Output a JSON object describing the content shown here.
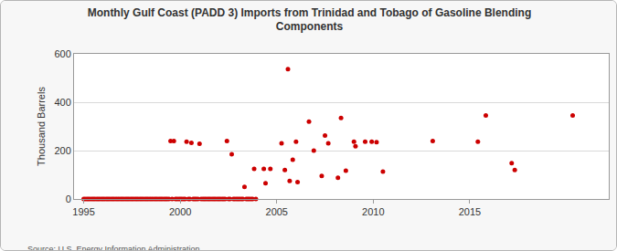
{
  "chart_data": {
    "type": "scatter",
    "title": "Monthly Gulf Coast (PADD 3) Imports from Trinidad and Tobago of Gasoline Blending Components",
    "y_label": "Thousand Barrels",
    "source": "Source: U.S. Energy Information Administration",
    "color": "#cc0000",
    "marker": "circle",
    "grid": true,
    "xlim": [
      1994.5,
      2022.2
    ],
    "xticks": [
      1995,
      2000,
      2005,
      2010,
      2015
    ],
    "ylim": [
      0,
      600
    ],
    "yticks": [
      0,
      200,
      400,
      600
    ],
    "x": [
      1995.0,
      1995.08,
      1995.17,
      1995.25,
      1995.33,
      1995.42,
      1995.5,
      1995.58,
      1995.67,
      1995.75,
      1995.83,
      1995.92,
      1996.0,
      1996.08,
      1996.17,
      1996.25,
      1996.33,
      1996.42,
      1996.5,
      1996.58,
      1996.67,
      1996.75,
      1996.83,
      1996.92,
      1997.0,
      1997.08,
      1997.17,
      1997.25,
      1997.33,
      1997.42,
      1997.5,
      1997.58,
      1997.67,
      1997.75,
      1997.83,
      1997.92,
      1998.0,
      1998.08,
      1998.17,
      1998.25,
      1998.33,
      1998.42,
      1998.5,
      1998.58,
      1998.67,
      1998.75,
      1998.83,
      1998.92,
      1999.0,
      1999.08,
      1999.17,
      1999.25,
      1999.33,
      1999.42,
      1999.5,
      1999.58,
      1999.67,
      1999.75,
      1999.83,
      1999.92,
      2000.0,
      2000.08,
      2000.17,
      2000.25,
      2000.33,
      2000.42,
      2000.5,
      2000.58,
      2000.67,
      2000.75,
      2000.83,
      2000.92,
      2001.0,
      2001.08,
      2001.17,
      2001.25,
      2001.33,
      2001.42,
      2001.5,
      2001.58,
      2001.67,
      2001.75,
      2001.83,
      2001.92,
      2002.0,
      2002.08,
      2002.17,
      2002.25,
      2002.33,
      2002.42,
      2002.5,
      2002.58,
      2002.67,
      2002.75,
      2002.83,
      2002.92,
      2003.0,
      2003.08,
      2003.17,
      2003.25,
      2003.33,
      2003.42,
      2003.5,
      2003.58,
      2003.67,
      2003.75,
      2003.83,
      2003.92,
      2004.33,
      2004.42,
      2004.67,
      2005.25,
      2005.42,
      2005.58,
      2005.67,
      2005.83,
      2006.0,
      2006.08,
      2006.67,
      2006.92,
      2007.33,
      2007.5,
      2007.67,
      2008.17,
      2008.33,
      2008.58,
      2009.0,
      2009.08,
      2009.58,
      2009.92,
      2010.17,
      2010.5,
      2013.08,
      2015.42,
      2015.83,
      2017.17,
      2017.33,
      2020.33
    ],
    "values": [
      0,
      0,
      0,
      0,
      0,
      0,
      0,
      0,
      0,
      0,
      0,
      0,
      0,
      0,
      0,
      0,
      0,
      0,
      0,
      0,
      0,
      0,
      0,
      0,
      0,
      0,
      0,
      0,
      0,
      0,
      0,
      0,
      0,
      0,
      0,
      0,
      0,
      0,
      0,
      0,
      0,
      0,
      0,
      0,
      0,
      0,
      0,
      0,
      0,
      0,
      0,
      0,
      0,
      0,
      240,
      0,
      240,
      0,
      0,
      0,
      0,
      0,
      0,
      0,
      237,
      0,
      0,
      232,
      0,
      0,
      0,
      0,
      228,
      0,
      0,
      0,
      0,
      0,
      0,
      0,
      0,
      0,
      0,
      0,
      0,
      0,
      0,
      0,
      0,
      240,
      0,
      0,
      185,
      0,
      0,
      0,
      0,
      0,
      0,
      0,
      50,
      0,
      0,
      0,
      0,
      0,
      125,
      0,
      125,
      65,
      125,
      230,
      120,
      537,
      75,
      162,
      237,
      70,
      320,
      200,
      95,
      262,
      230,
      88,
      335,
      117,
      237,
      218,
      237,
      237,
      235,
      113,
      240,
      237,
      345,
      148,
      120,
      345
    ]
  }
}
